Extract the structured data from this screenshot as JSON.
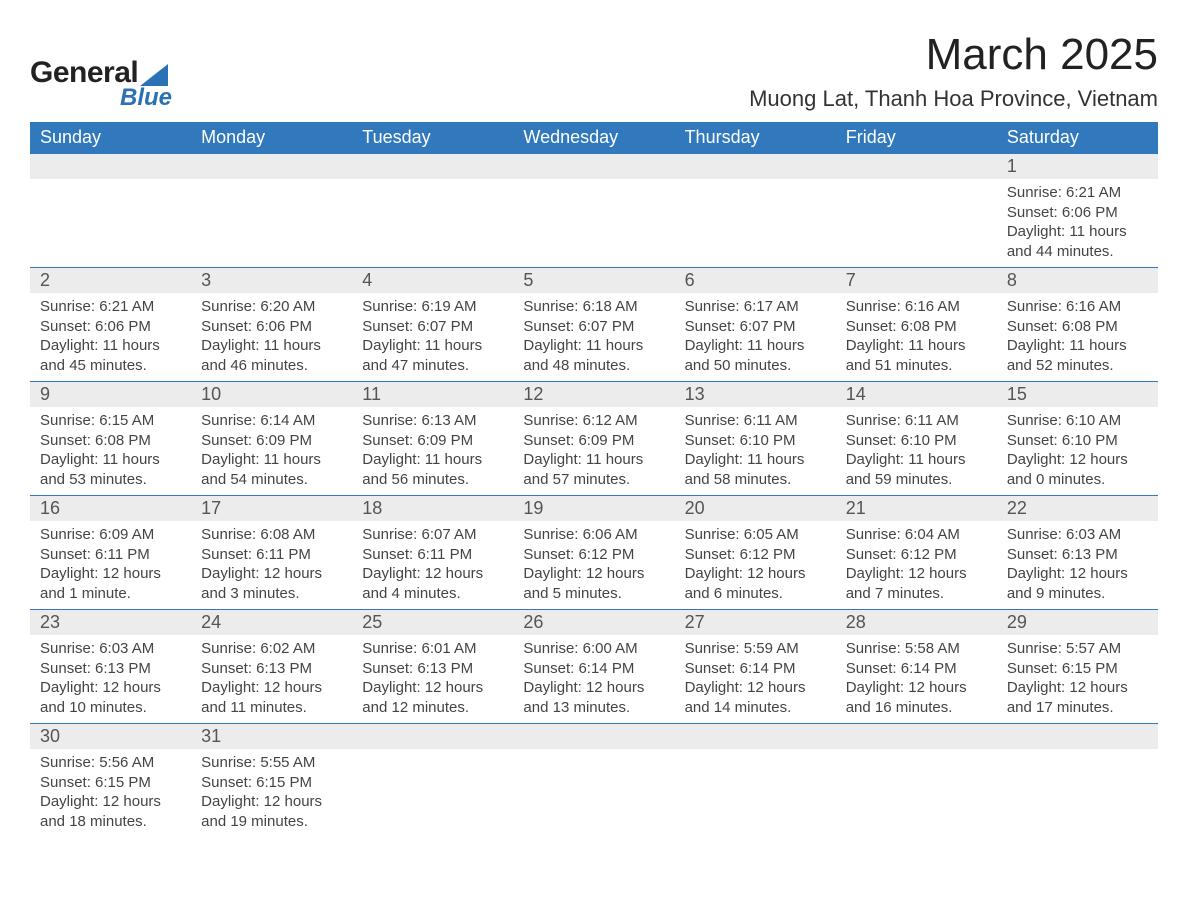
{
  "logo": {
    "text1": "General",
    "text2": "Blue"
  },
  "title": "March 2025",
  "location": "Muong Lat, Thanh Hoa Province, Vietnam",
  "colors": {
    "header_bg": "#3179bc",
    "header_text": "#ffffff",
    "daynum_bg": "#ececec",
    "row_divider": "#3179bc",
    "body_text": "#444444",
    "logo_accent": "#2a72b5"
  },
  "typography": {
    "title_fontsize": 44,
    "location_fontsize": 22,
    "header_fontsize": 18,
    "daynum_fontsize": 18,
    "cell_fontsize": 15
  },
  "weekdays": [
    "Sunday",
    "Monday",
    "Tuesday",
    "Wednesday",
    "Thursday",
    "Friday",
    "Saturday"
  ],
  "weeks": [
    [
      null,
      null,
      null,
      null,
      null,
      null,
      {
        "n": "1",
        "sr": "Sunrise: 6:21 AM",
        "ss": "Sunset: 6:06 PM",
        "dl": "Daylight: 11 hours and 44 minutes."
      }
    ],
    [
      {
        "n": "2",
        "sr": "Sunrise: 6:21 AM",
        "ss": "Sunset: 6:06 PM",
        "dl": "Daylight: 11 hours and 45 minutes."
      },
      {
        "n": "3",
        "sr": "Sunrise: 6:20 AM",
        "ss": "Sunset: 6:06 PM",
        "dl": "Daylight: 11 hours and 46 minutes."
      },
      {
        "n": "4",
        "sr": "Sunrise: 6:19 AM",
        "ss": "Sunset: 6:07 PM",
        "dl": "Daylight: 11 hours and 47 minutes."
      },
      {
        "n": "5",
        "sr": "Sunrise: 6:18 AM",
        "ss": "Sunset: 6:07 PM",
        "dl": "Daylight: 11 hours and 48 minutes."
      },
      {
        "n": "6",
        "sr": "Sunrise: 6:17 AM",
        "ss": "Sunset: 6:07 PM",
        "dl": "Daylight: 11 hours and 50 minutes."
      },
      {
        "n": "7",
        "sr": "Sunrise: 6:16 AM",
        "ss": "Sunset: 6:08 PM",
        "dl": "Daylight: 11 hours and 51 minutes."
      },
      {
        "n": "8",
        "sr": "Sunrise: 6:16 AM",
        "ss": "Sunset: 6:08 PM",
        "dl": "Daylight: 11 hours and 52 minutes."
      }
    ],
    [
      {
        "n": "9",
        "sr": "Sunrise: 6:15 AM",
        "ss": "Sunset: 6:08 PM",
        "dl": "Daylight: 11 hours and 53 minutes."
      },
      {
        "n": "10",
        "sr": "Sunrise: 6:14 AM",
        "ss": "Sunset: 6:09 PM",
        "dl": "Daylight: 11 hours and 54 minutes."
      },
      {
        "n": "11",
        "sr": "Sunrise: 6:13 AM",
        "ss": "Sunset: 6:09 PM",
        "dl": "Daylight: 11 hours and 56 minutes."
      },
      {
        "n": "12",
        "sr": "Sunrise: 6:12 AM",
        "ss": "Sunset: 6:09 PM",
        "dl": "Daylight: 11 hours and 57 minutes."
      },
      {
        "n": "13",
        "sr": "Sunrise: 6:11 AM",
        "ss": "Sunset: 6:10 PM",
        "dl": "Daylight: 11 hours and 58 minutes."
      },
      {
        "n": "14",
        "sr": "Sunrise: 6:11 AM",
        "ss": "Sunset: 6:10 PM",
        "dl": "Daylight: 11 hours and 59 minutes."
      },
      {
        "n": "15",
        "sr": "Sunrise: 6:10 AM",
        "ss": "Sunset: 6:10 PM",
        "dl": "Daylight: 12 hours and 0 minutes."
      }
    ],
    [
      {
        "n": "16",
        "sr": "Sunrise: 6:09 AM",
        "ss": "Sunset: 6:11 PM",
        "dl": "Daylight: 12 hours and 1 minute."
      },
      {
        "n": "17",
        "sr": "Sunrise: 6:08 AM",
        "ss": "Sunset: 6:11 PM",
        "dl": "Daylight: 12 hours and 3 minutes."
      },
      {
        "n": "18",
        "sr": "Sunrise: 6:07 AM",
        "ss": "Sunset: 6:11 PM",
        "dl": "Daylight: 12 hours and 4 minutes."
      },
      {
        "n": "19",
        "sr": "Sunrise: 6:06 AM",
        "ss": "Sunset: 6:12 PM",
        "dl": "Daylight: 12 hours and 5 minutes."
      },
      {
        "n": "20",
        "sr": "Sunrise: 6:05 AM",
        "ss": "Sunset: 6:12 PM",
        "dl": "Daylight: 12 hours and 6 minutes."
      },
      {
        "n": "21",
        "sr": "Sunrise: 6:04 AM",
        "ss": "Sunset: 6:12 PM",
        "dl": "Daylight: 12 hours and 7 minutes."
      },
      {
        "n": "22",
        "sr": "Sunrise: 6:03 AM",
        "ss": "Sunset: 6:13 PM",
        "dl": "Daylight: 12 hours and 9 minutes."
      }
    ],
    [
      {
        "n": "23",
        "sr": "Sunrise: 6:03 AM",
        "ss": "Sunset: 6:13 PM",
        "dl": "Daylight: 12 hours and 10 minutes."
      },
      {
        "n": "24",
        "sr": "Sunrise: 6:02 AM",
        "ss": "Sunset: 6:13 PM",
        "dl": "Daylight: 12 hours and 11 minutes."
      },
      {
        "n": "25",
        "sr": "Sunrise: 6:01 AM",
        "ss": "Sunset: 6:13 PM",
        "dl": "Daylight: 12 hours and 12 minutes."
      },
      {
        "n": "26",
        "sr": "Sunrise: 6:00 AM",
        "ss": "Sunset: 6:14 PM",
        "dl": "Daylight: 12 hours and 13 minutes."
      },
      {
        "n": "27",
        "sr": "Sunrise: 5:59 AM",
        "ss": "Sunset: 6:14 PM",
        "dl": "Daylight: 12 hours and 14 minutes."
      },
      {
        "n": "28",
        "sr": "Sunrise: 5:58 AM",
        "ss": "Sunset: 6:14 PM",
        "dl": "Daylight: 12 hours and 16 minutes."
      },
      {
        "n": "29",
        "sr": "Sunrise: 5:57 AM",
        "ss": "Sunset: 6:15 PM",
        "dl": "Daylight: 12 hours and 17 minutes."
      }
    ],
    [
      {
        "n": "30",
        "sr": "Sunrise: 5:56 AM",
        "ss": "Sunset: 6:15 PM",
        "dl": "Daylight: 12 hours and 18 minutes."
      },
      {
        "n": "31",
        "sr": "Sunrise: 5:55 AM",
        "ss": "Sunset: 6:15 PM",
        "dl": "Daylight: 12 hours and 19 minutes."
      },
      null,
      null,
      null,
      null,
      null
    ]
  ]
}
